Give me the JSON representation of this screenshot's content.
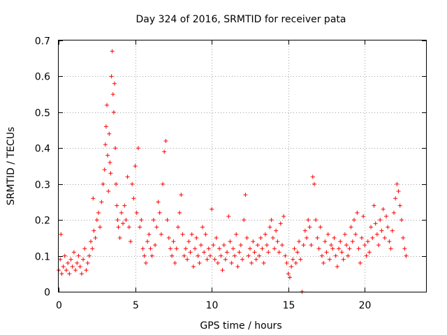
{
  "chart_data": {
    "type": "scatter",
    "title": "Day 324 of 2016, SRMTID for receiver pata",
    "xlabel": "GPS time / hours",
    "ylabel": "SRMTID / TECUs",
    "xlim": [
      0,
      24
    ],
    "ylim": [
      0,
      0.7
    ],
    "xticks": [
      0,
      5,
      10,
      15,
      20
    ],
    "yticks": [
      0,
      0.1,
      0.2,
      0.3,
      0.4,
      0.5,
      0.6,
      0.7
    ],
    "xtick_labels": [
      "0",
      "5",
      "10",
      "15",
      "20"
    ],
    "ytick_labels": [
      "0",
      "0.1",
      "0.2",
      "0.3",
      "0.4",
      "0.5",
      "0.6",
      "0.7"
    ],
    "grid": true,
    "marker": "+",
    "color": "#ff0000",
    "series": [
      {
        "name": "SRMTID",
        "points": [
          [
            0.0,
            0.06
          ],
          [
            0.1,
            0.09
          ],
          [
            0.15,
            0.16
          ],
          [
            0.2,
            0.05
          ],
          [
            0.3,
            0.07
          ],
          [
            0.4,
            0.1
          ],
          [
            0.5,
            0.06
          ],
          [
            0.6,
            0.08
          ],
          [
            0.7,
            0.05
          ],
          [
            0.8,
            0.09
          ],
          [
            0.9,
            0.07
          ],
          [
            1.0,
            0.11
          ],
          [
            1.1,
            0.06
          ],
          [
            1.2,
            0.08
          ],
          [
            1.3,
            0.1
          ],
          [
            1.4,
            0.07
          ],
          [
            1.5,
            0.05
          ],
          [
            1.6,
            0.09
          ],
          [
            1.7,
            0.12
          ],
          [
            1.8,
            0.06
          ],
          [
            1.9,
            0.08
          ],
          [
            2.0,
            0.1
          ],
          [
            2.1,
            0.14
          ],
          [
            2.2,
            0.12
          ],
          [
            2.25,
            0.26
          ],
          [
            2.3,
            0.17
          ],
          [
            2.4,
            0.15
          ],
          [
            2.5,
            0.2
          ],
          [
            2.6,
            0.22
          ],
          [
            2.7,
            0.18
          ],
          [
            2.8,
            0.25
          ],
          [
            2.9,
            0.3
          ],
          [
            3.0,
            0.34
          ],
          [
            3.05,
            0.41
          ],
          [
            3.1,
            0.46
          ],
          [
            3.15,
            0.52
          ],
          [
            3.2,
            0.38
          ],
          [
            3.25,
            0.28
          ],
          [
            3.3,
            0.44
          ],
          [
            3.35,
            0.36
          ],
          [
            3.4,
            0.33
          ],
          [
            3.45,
            0.6
          ],
          [
            3.5,
            0.67
          ],
          [
            3.55,
            0.55
          ],
          [
            3.6,
            0.5
          ],
          [
            3.65,
            0.58
          ],
          [
            3.7,
            0.4
          ],
          [
            3.75,
            0.3
          ],
          [
            3.8,
            0.24
          ],
          [
            3.85,
            0.2
          ],
          [
            3.9,
            0.18
          ],
          [
            4.0,
            0.15
          ],
          [
            4.1,
            0.22
          ],
          [
            4.2,
            0.19
          ],
          [
            4.3,
            0.24
          ],
          [
            4.4,
            0.2
          ],
          [
            4.5,
            0.32
          ],
          [
            4.6,
            0.18
          ],
          [
            4.7,
            0.14
          ],
          [
            4.8,
            0.3
          ],
          [
            4.9,
            0.26
          ],
          [
            5.0,
            0.35
          ],
          [
            5.1,
            0.22
          ],
          [
            5.2,
            0.4
          ],
          [
            5.3,
            0.18
          ],
          [
            5.4,
            0.2
          ],
          [
            5.5,
            0.12
          ],
          [
            5.6,
            0.1
          ],
          [
            5.7,
            0.08
          ],
          [
            5.8,
            0.14
          ],
          [
            5.9,
            0.16
          ],
          [
            6.0,
            0.12
          ],
          [
            6.1,
            0.1
          ],
          [
            6.2,
            0.2
          ],
          [
            6.3,
            0.13
          ],
          [
            6.4,
            0.18
          ],
          [
            6.5,
            0.25
          ],
          [
            6.6,
            0.22
          ],
          [
            6.7,
            0.16
          ],
          [
            6.8,
            0.3
          ],
          [
            6.9,
            0.39
          ],
          [
            7.0,
            0.42
          ],
          [
            7.1,
            0.2
          ],
          [
            7.2,
            0.15
          ],
          [
            7.3,
            0.12
          ],
          [
            7.4,
            0.1
          ],
          [
            7.5,
            0.14
          ],
          [
            7.6,
            0.08
          ],
          [
            7.7,
            0.12
          ],
          [
            7.8,
            0.18
          ],
          [
            7.9,
            0.22
          ],
          [
            8.0,
            0.27
          ],
          [
            8.1,
            0.16
          ],
          [
            8.2,
            0.1
          ],
          [
            8.3,
            0.12
          ],
          [
            8.4,
            0.09
          ],
          [
            8.5,
            0.14
          ],
          [
            8.6,
            0.11
          ],
          [
            8.7,
            0.16
          ],
          [
            8.8,
            0.07
          ],
          [
            8.9,
            0.12
          ],
          [
            9.0,
            0.15
          ],
          [
            9.1,
            0.1
          ],
          [
            9.2,
            0.08
          ],
          [
            9.3,
            0.13
          ],
          [
            9.4,
            0.18
          ],
          [
            9.5,
            0.11
          ],
          [
            9.6,
            0.16
          ],
          [
            9.7,
            0.09
          ],
          [
            9.8,
            0.12
          ],
          [
            9.9,
            0.1
          ],
          [
            10.0,
            0.23
          ],
          [
            10.1,
            0.13
          ],
          [
            10.2,
            0.09
          ],
          [
            10.3,
            0.15
          ],
          [
            10.4,
            0.08
          ],
          [
            10.5,
            0.12
          ],
          [
            10.6,
            0.1
          ],
          [
            10.7,
            0.06
          ],
          [
            10.8,
            0.13
          ],
          [
            10.9,
            0.09
          ],
          [
            11.0,
            0.11
          ],
          [
            11.1,
            0.21
          ],
          [
            11.2,
            0.14
          ],
          [
            11.3,
            0.08
          ],
          [
            11.4,
            0.12
          ],
          [
            11.5,
            0.1
          ],
          [
            11.6,
            0.16
          ],
          [
            11.7,
            0.07
          ],
          [
            11.8,
            0.11
          ],
          [
            11.9,
            0.13
          ],
          [
            12.0,
            0.09
          ],
          [
            12.1,
            0.2
          ],
          [
            12.2,
            0.27
          ],
          [
            12.3,
            0.15
          ],
          [
            12.4,
            0.1
          ],
          [
            12.5,
            0.12
          ],
          [
            12.6,
            0.08
          ],
          [
            12.7,
            0.14
          ],
          [
            12.8,
            0.11
          ],
          [
            12.9,
            0.09
          ],
          [
            13.0,
            0.13
          ],
          [
            13.1,
            0.1
          ],
          [
            13.2,
            0.15
          ],
          [
            13.3,
            0.12
          ],
          [
            13.4,
            0.08
          ],
          [
            13.5,
            0.16
          ],
          [
            13.6,
            0.13
          ],
          [
            13.7,
            0.11
          ],
          [
            13.8,
            0.18
          ],
          [
            13.9,
            0.2
          ],
          [
            14.0,
            0.15
          ],
          [
            14.1,
            0.12
          ],
          [
            14.2,
            0.17
          ],
          [
            14.3,
            0.14
          ],
          [
            14.4,
            0.11
          ],
          [
            14.5,
            0.19
          ],
          [
            14.6,
            0.13
          ],
          [
            14.7,
            0.21
          ],
          [
            14.8,
            0.1
          ],
          [
            14.9,
            0.08
          ],
          [
            15.0,
            0.05
          ],
          [
            15.1,
            0.04
          ],
          [
            15.2,
            0.07
          ],
          [
            15.3,
            0.09
          ],
          [
            15.4,
            0.12
          ],
          [
            15.5,
            0.08
          ],
          [
            15.6,
            0.11
          ],
          [
            15.7,
            0.14
          ],
          [
            15.8,
            0.09
          ],
          [
            15.9,
            0.0
          ],
          [
            16.0,
            0.13
          ],
          [
            16.1,
            0.17
          ],
          [
            16.2,
            0.15
          ],
          [
            16.3,
            0.2
          ],
          [
            16.4,
            0.18
          ],
          [
            16.5,
            0.13
          ],
          [
            16.6,
            0.32
          ],
          [
            16.7,
            0.3
          ],
          [
            16.8,
            0.2
          ],
          [
            16.9,
            0.15
          ],
          [
            17.0,
            0.12
          ],
          [
            17.1,
            0.18
          ],
          [
            17.2,
            0.1
          ],
          [
            17.3,
            0.08
          ],
          [
            17.4,
            0.14
          ],
          [
            17.5,
            0.11
          ],
          [
            17.6,
            0.16
          ],
          [
            17.7,
            0.09
          ],
          [
            17.8,
            0.13
          ],
          [
            17.9,
            0.12
          ],
          [
            18.0,
            0.15
          ],
          [
            18.1,
            0.1
          ],
          [
            18.2,
            0.07
          ],
          [
            18.3,
            0.12
          ],
          [
            18.4,
            0.14
          ],
          [
            18.5,
            0.11
          ],
          [
            18.6,
            0.09
          ],
          [
            18.7,
            0.16
          ],
          [
            18.8,
            0.13
          ],
          [
            18.9,
            0.1
          ],
          [
            19.0,
            0.12
          ],
          [
            19.1,
            0.18
          ],
          [
            19.2,
            0.14
          ],
          [
            19.3,
            0.2
          ],
          [
            19.4,
            0.16
          ],
          [
            19.5,
            0.22
          ],
          [
            19.6,
            0.12
          ],
          [
            19.7,
            0.08
          ],
          [
            19.8,
            0.15
          ],
          [
            19.9,
            0.21
          ],
          [
            20.0,
            0.13
          ],
          [
            20.1,
            0.1
          ],
          [
            20.2,
            0.14
          ],
          [
            20.3,
            0.11
          ],
          [
            20.4,
            0.18
          ],
          [
            20.5,
            0.15
          ],
          [
            20.6,
            0.24
          ],
          [
            20.7,
            0.19
          ],
          [
            20.8,
            0.16
          ],
          [
            20.9,
            0.13
          ],
          [
            21.0,
            0.2
          ],
          [
            21.1,
            0.17
          ],
          [
            21.2,
            0.23
          ],
          [
            21.3,
            0.15
          ],
          [
            21.4,
            0.21
          ],
          [
            21.5,
            0.18
          ],
          [
            21.6,
            0.14
          ],
          [
            21.7,
            0.12
          ],
          [
            21.8,
            0.17
          ],
          [
            21.9,
            0.22
          ],
          [
            22.0,
            0.26
          ],
          [
            22.1,
            0.3
          ],
          [
            22.2,
            0.28
          ],
          [
            22.3,
            0.24
          ],
          [
            22.4,
            0.2
          ],
          [
            22.5,
            0.15
          ],
          [
            22.6,
            0.12
          ],
          [
            22.7,
            0.1
          ]
        ]
      }
    ]
  }
}
